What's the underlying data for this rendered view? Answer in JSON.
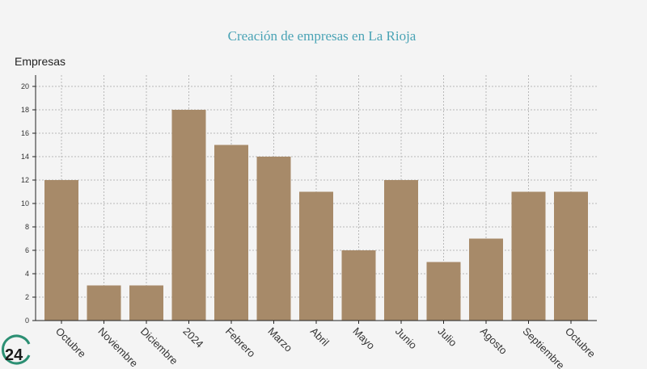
{
  "chart_data": {
    "type": "bar",
    "title": "Creación de empresas en La Rioja",
    "ylabel": "Empresas",
    "xlabel": "",
    "categories": [
      "Octubre",
      "Noviembre",
      "Diciembre",
      "2024",
      "Febrero",
      "Marzo",
      "Abril",
      "Mayo",
      "Junio",
      "Julio",
      "Agosto",
      "Septiembre",
      "Octubre"
    ],
    "values": [
      12,
      3,
      3,
      18,
      15,
      14,
      11,
      6,
      12,
      5,
      7,
      11,
      11
    ],
    "ylim": [
      0,
      20
    ],
    "yticks": [
      0,
      2,
      4,
      6,
      8,
      10,
      12,
      14,
      16,
      18,
      20
    ],
    "grid": true,
    "bar_color": "#a78a69"
  },
  "logo": {
    "text": "24",
    "color": "#2c8f73"
  }
}
